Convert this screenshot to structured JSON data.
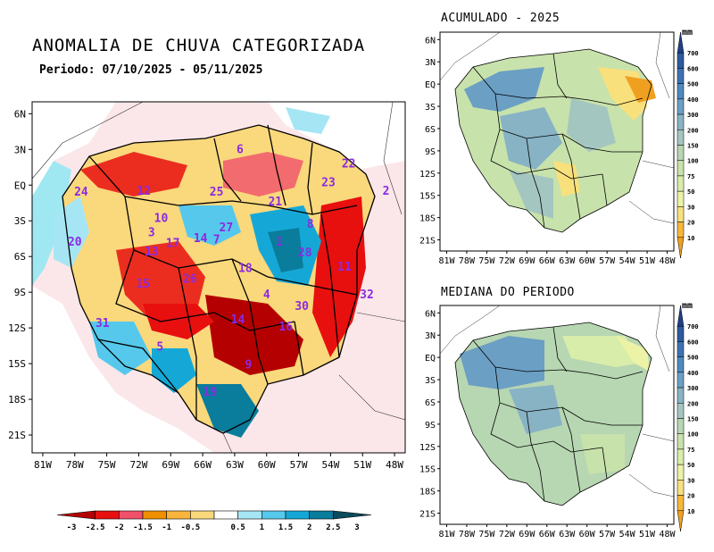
{
  "main": {
    "title": "ANOMALIA DE CHUVA CATEGORIZADA",
    "period": "Periodo: 07/10/2025 - 05/11/2025",
    "lat_ticks": [
      "6N",
      "3N",
      "EQ",
      "3S",
      "6S",
      "9S",
      "12S",
      "15S",
      "18S",
      "21S"
    ],
    "lon_ticks": [
      "81W",
      "78W",
      "75W",
      "72W",
      "69W",
      "66W",
      "63W",
      "60W",
      "57W",
      "54W",
      "51W",
      "48W"
    ],
    "basin_labels": [
      {
        "id": "6",
        "lat": 3.0,
        "lon": -62.5
      },
      {
        "id": "22",
        "lat": 1.8,
        "lon": -52.3
      },
      {
        "id": "23",
        "lat": 0.2,
        "lon": -54.2
      },
      {
        "id": "24",
        "lat": -0.6,
        "lon": -77.4
      },
      {
        "id": "12",
        "lat": -0.5,
        "lon": -71.5
      },
      {
        "id": "25",
        "lat": -0.6,
        "lon": -64.7
      },
      {
        "id": "21",
        "lat": -1.4,
        "lon": -59.2
      },
      {
        "id": "2",
        "lat": -0.5,
        "lon": -48.8
      },
      {
        "id": "10",
        "lat": -2.8,
        "lon": -69.9
      },
      {
        "id": "27",
        "lat": -3.6,
        "lon": -63.8
      },
      {
        "id": "8",
        "lat": -3.3,
        "lon": -55.9
      },
      {
        "id": "20",
        "lat": -4.8,
        "lon": -78.0
      },
      {
        "id": "3",
        "lat": -4.0,
        "lon": -70.8
      },
      {
        "id": "17",
        "lat": -4.9,
        "lon": -68.8
      },
      {
        "id": "7",
        "lat": -4.6,
        "lon": -64.7
      },
      {
        "id": "14",
        "lat": -4.5,
        "lon": -66.2
      },
      {
        "id": "1",
        "lat": -4.8,
        "lon": -58.8
      },
      {
        "id": "13",
        "lat": -5.6,
        "lon": -70.8
      },
      {
        "id": "28",
        "lat": -5.7,
        "lon": -56.4
      },
      {
        "id": "18",
        "lat": -7.0,
        "lon": -62.0
      },
      {
        "id": "11",
        "lat": -6.9,
        "lon": -52.7
      },
      {
        "id": "26",
        "lat": -7.9,
        "lon": -67.2
      },
      {
        "id": "15",
        "lat": -8.3,
        "lon": -71.6
      },
      {
        "id": "4",
        "lat": -9.2,
        "lon": -60.0
      },
      {
        "id": "32",
        "lat": -9.2,
        "lon": -50.6
      },
      {
        "id": "30",
        "lat": -10.2,
        "lon": -56.7
      },
      {
        "id": "14",
        "lat": -11.3,
        "lon": -62.7
      },
      {
        "id": "31",
        "lat": -11.6,
        "lon": -75.4
      },
      {
        "id": "16",
        "lat": -11.9,
        "lon": -58.2
      },
      {
        "id": "5",
        "lat": -13.6,
        "lon": -70.0
      },
      {
        "id": "9",
        "lat": -15.1,
        "lon": -61.7
      },
      {
        "id": "19",
        "lat": -17.4,
        "lon": -65.3
      }
    ]
  },
  "legend": {
    "labels": [
      "-3",
      "-2.5",
      "-2",
      "-1.5",
      "-1",
      "-0.5",
      "0.5",
      "1",
      "1.5",
      "2",
      "2.5",
      "3"
    ],
    "colors": [
      "#b40000",
      "#e80f0f",
      "#f0506a",
      "#f09000",
      "#f9b43c",
      "#fad87c",
      "#ffffff",
      "#a6e6f4",
      "#56c8ec",
      "#15a8d6",
      "#0a7c9c",
      "#0b4b5e"
    ]
  },
  "accum": {
    "title": "ACUMULADO - 2025",
    "unit": "mm",
    "lat_ticks": [
      "6N",
      "3N",
      "EQ",
      "3S",
      "6S",
      "9S",
      "12S",
      "15S",
      "18S",
      "21S"
    ],
    "lon_ticks": [
      "81W",
      "78W",
      "75W",
      "72W",
      "69W",
      "66W",
      "63W",
      "60W",
      "57W",
      "54W",
      "51W",
      "48W"
    ]
  },
  "median": {
    "title": "MEDIANA DO PERIODO",
    "unit": "mm",
    "lat_ticks": [
      "6N",
      "3N",
      "EQ",
      "3S",
      "6S",
      "9S",
      "12S",
      "15S",
      "18S",
      "21S"
    ],
    "lon_ticks": [
      "81W",
      "78W",
      "75W",
      "72W",
      "69W",
      "66W",
      "63W",
      "60W",
      "57W",
      "54W",
      "51W",
      "48W"
    ]
  },
  "scale": {
    "labels": [
      "700",
      "600",
      "500",
      "400",
      "300",
      "200",
      "150",
      "100",
      "75",
      "50",
      "30",
      "20",
      "10"
    ],
    "colors": [
      "#1f3f86",
      "#2c5aa0",
      "#3d72b4",
      "#4f89bf",
      "#6b9fc4",
      "#87b3c4",
      "#a4c6c0",
      "#b7d6b2",
      "#c8e2ab",
      "#d9edaa",
      "#ecf2a6",
      "#f8e07c",
      "#f5b83c",
      "#f0a020"
    ]
  }
}
